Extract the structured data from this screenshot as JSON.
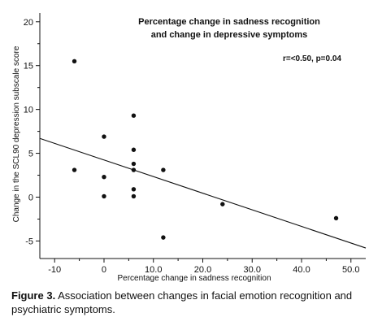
{
  "chart_data": {
    "type": "scatter",
    "title_lines": [
      "Percentage change in sadness recognition",
      "and change in depressive symptoms"
    ],
    "annotation": "r=<0.50, p=0.04",
    "xlabel": "Percentage change in sadness recognition",
    "ylabel": "Change in the SCL90 depression subscale score",
    "xlim": [
      -13,
      53
    ],
    "ylim": [
      -7,
      21
    ],
    "x_ticks": [
      -10,
      0,
      10,
      20,
      30,
      40,
      50
    ],
    "x_tick_labels": [
      "-10",
      "0",
      "10.0",
      "20.0",
      "30.0",
      "40.0",
      "50.0"
    ],
    "y_ticks": [
      -5,
      0,
      5,
      10,
      15,
      20
    ],
    "y_tick_labels": [
      "-5",
      "0",
      "5",
      "10",
      "15",
      "20"
    ],
    "points": [
      {
        "x": -6,
        "y": 15.5
      },
      {
        "x": -6,
        "y": 3.1
      },
      {
        "x": 0,
        "y": 6.9
      },
      {
        "x": 0,
        "y": 2.3
      },
      {
        "x": 0,
        "y": 0.1
      },
      {
        "x": 6,
        "y": 9.3
      },
      {
        "x": 6,
        "y": 5.4
      },
      {
        "x": 6,
        "y": 3.8
      },
      {
        "x": 6,
        "y": 3.1
      },
      {
        "x": 6,
        "y": 0.9
      },
      {
        "x": 6,
        "y": 0.1
      },
      {
        "x": 12,
        "y": 3.1
      },
      {
        "x": 12,
        "y": -4.6
      },
      {
        "x": 24,
        "y": -0.8
      },
      {
        "x": 47,
        "y": -2.4
      }
    ],
    "regression_line": {
      "x": [
        -13,
        53
      ],
      "y": [
        6.7,
        -5.8
      ]
    }
  },
  "caption": {
    "label": "Figure 3.",
    "text": " Association between changes in facial emotion recognition and psychiatric symptoms."
  }
}
